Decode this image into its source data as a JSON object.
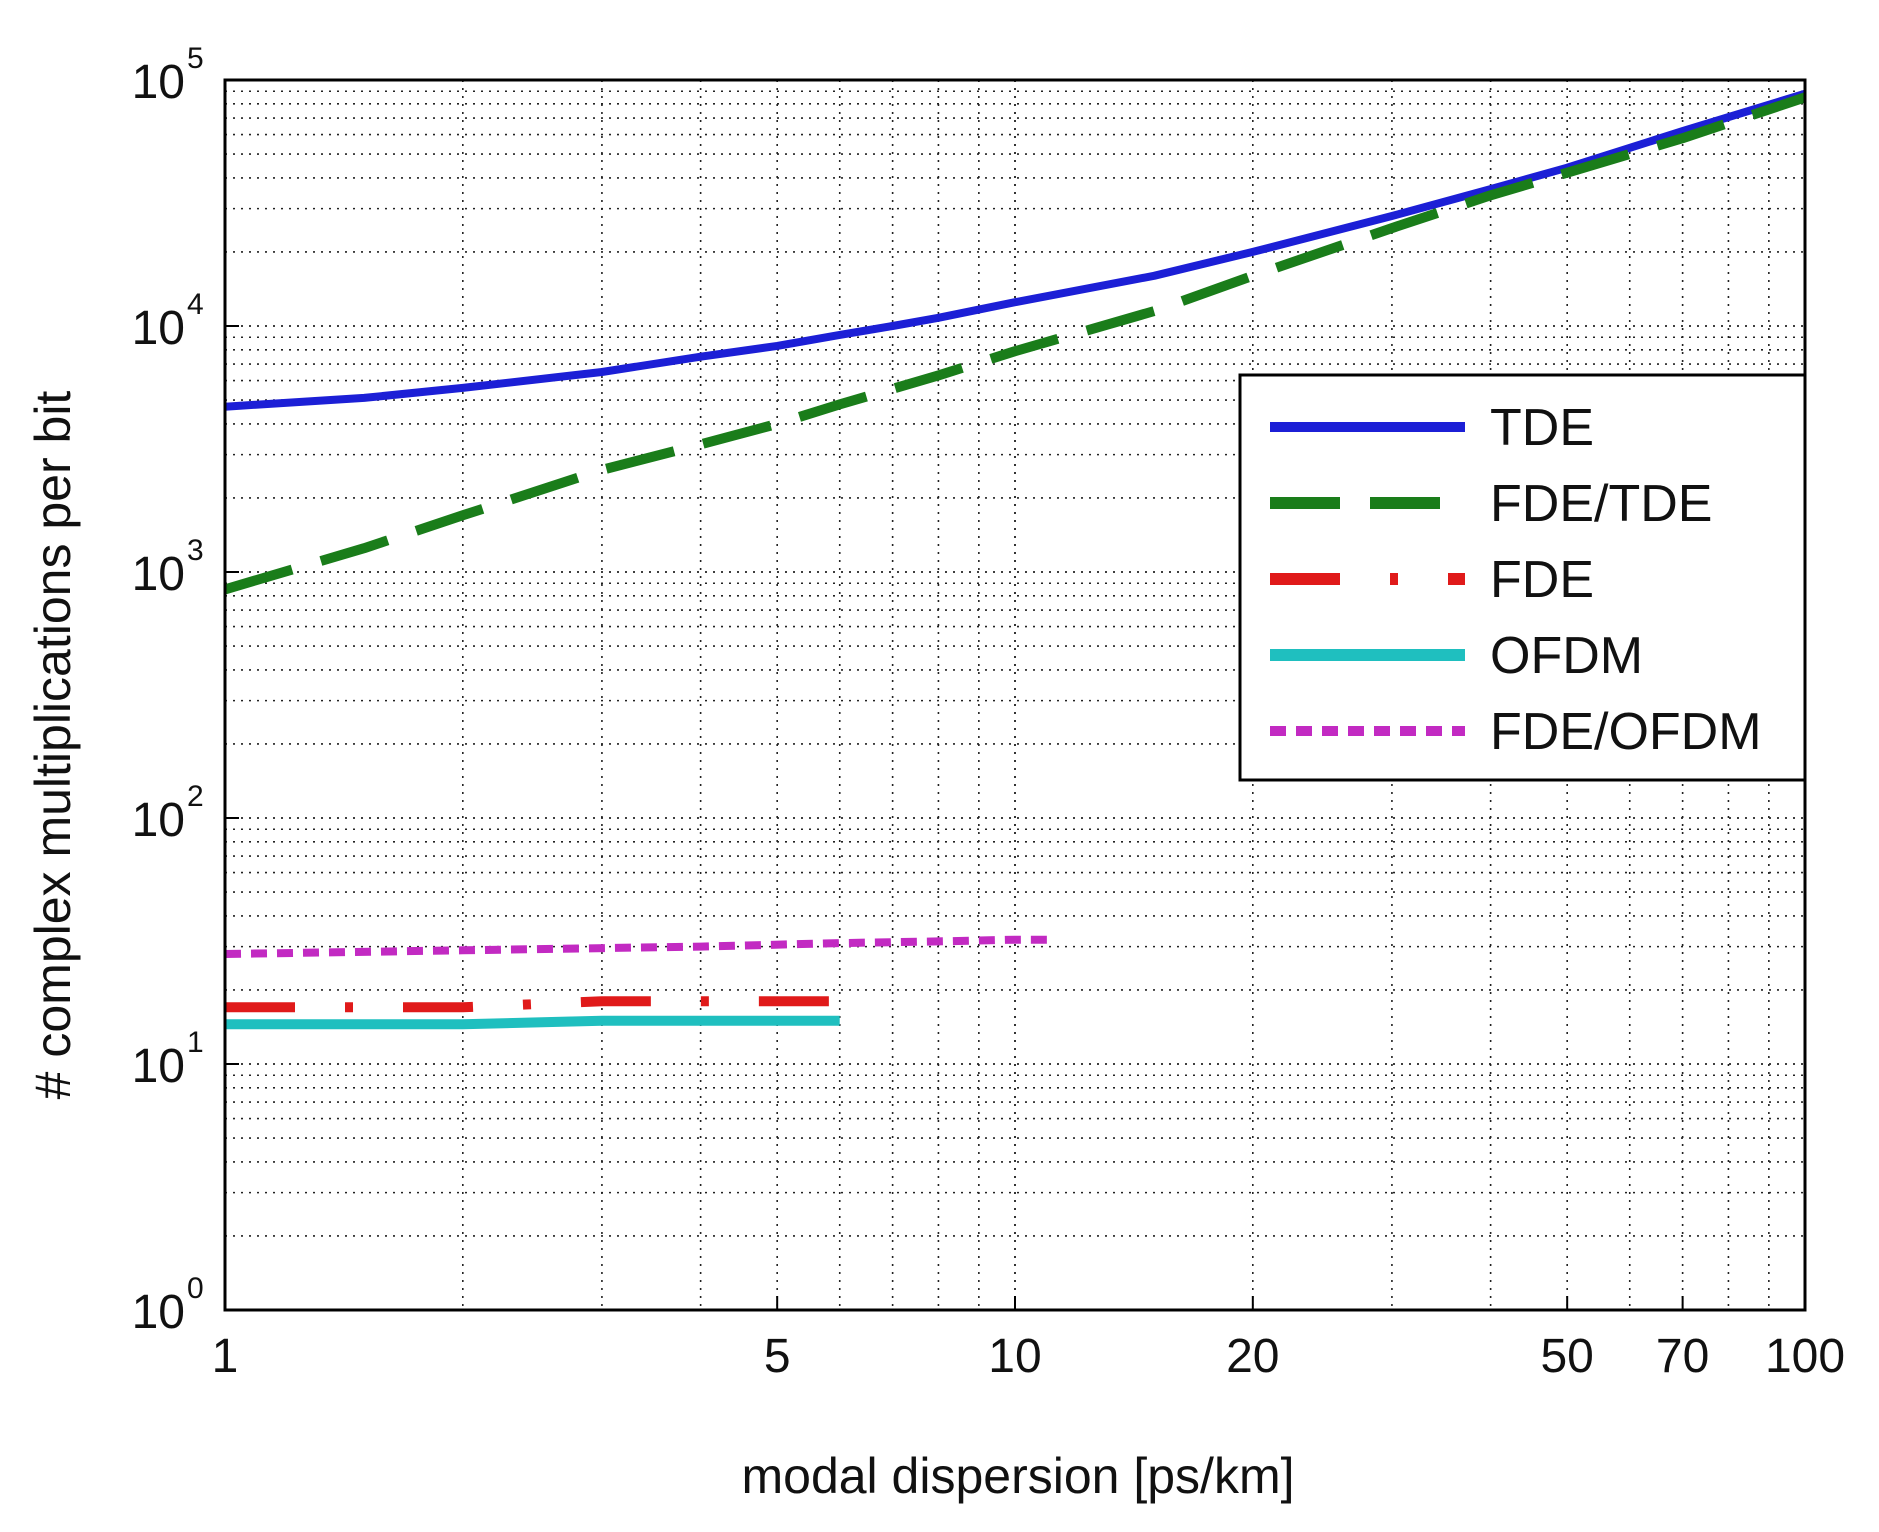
{
  "chart_data": {
    "type": "line",
    "title": "",
    "xlabel": "modal dispersion [ps/km]",
    "ylabel": "# complex multiplications per bit",
    "xscale": "log",
    "yscale": "log",
    "xlim": [
      1,
      100
    ],
    "ylim": [
      1,
      100000
    ],
    "grid": true,
    "legend_position": "right",
    "x_ticks": [
      {
        "value": 1,
        "label": "1"
      },
      {
        "value": 5,
        "label": "5"
      },
      {
        "value": 10,
        "label": "10"
      },
      {
        "value": 20,
        "label": "20"
      },
      {
        "value": 50,
        "label": "50"
      },
      {
        "value": 70,
        "label": "70"
      },
      {
        "value": 100,
        "label": "100"
      }
    ],
    "y_ticks": [
      {
        "value": 1,
        "base": "10",
        "exp": "0"
      },
      {
        "value": 10,
        "base": "10",
        "exp": "1"
      },
      {
        "value": 100,
        "base": "10",
        "exp": "2"
      },
      {
        "value": 1000,
        "base": "10",
        "exp": "3"
      },
      {
        "value": 10000,
        "base": "10",
        "exp": "4"
      },
      {
        "value": 100000,
        "base": "10",
        "exp": "5"
      }
    ],
    "series": [
      {
        "name": "TDE",
        "color": "#1c1fd6",
        "style": "solid",
        "width": 8,
        "x": [
          1,
          1.5,
          2,
          3,
          4,
          5,
          6,
          7,
          8,
          10,
          15,
          20,
          30,
          40,
          50,
          70,
          100
        ],
        "y": [
          4700,
          5100,
          5600,
          6500,
          7500,
          8300,
          9200,
          10000,
          10800,
          12500,
          16000,
          20000,
          28000,
          36000,
          44000,
          62000,
          88000
        ]
      },
      {
        "name": "FDE/TDE",
        "color": "#1a7d1a",
        "style": "dashed",
        "width": 10,
        "x": [
          1,
          1.5,
          2,
          3,
          4,
          5,
          6,
          8,
          10,
          15,
          20,
          30,
          40,
          50,
          70,
          100
        ],
        "y": [
          850,
          1250,
          1700,
          2600,
          3300,
          4000,
          4800,
          6300,
          7900,
          11500,
          16000,
          25000,
          34000,
          42000,
          58000,
          85000
        ]
      },
      {
        "name": "FDE",
        "color": "#e01a1a",
        "style": "dashdot",
        "width": 10,
        "x": [
          1,
          2,
          3,
          4,
          5,
          6
        ],
        "y": [
          17,
          17,
          18,
          18,
          18,
          18
        ]
      },
      {
        "name": "OFDM",
        "color": "#1fbfbf",
        "style": "solid",
        "width": 10,
        "x": [
          1,
          2,
          3,
          4,
          5,
          6
        ],
        "y": [
          14.5,
          14.5,
          15,
          15,
          15,
          15
        ]
      },
      {
        "name": "FDE/OFDM",
        "color": "#c22ac2",
        "style": "dotted",
        "width": 8,
        "x": [
          1,
          2,
          4,
          6,
          8,
          10,
          11
        ],
        "y": [
          28,
          29,
          30,
          31,
          31.5,
          32,
          32
        ]
      }
    ]
  }
}
